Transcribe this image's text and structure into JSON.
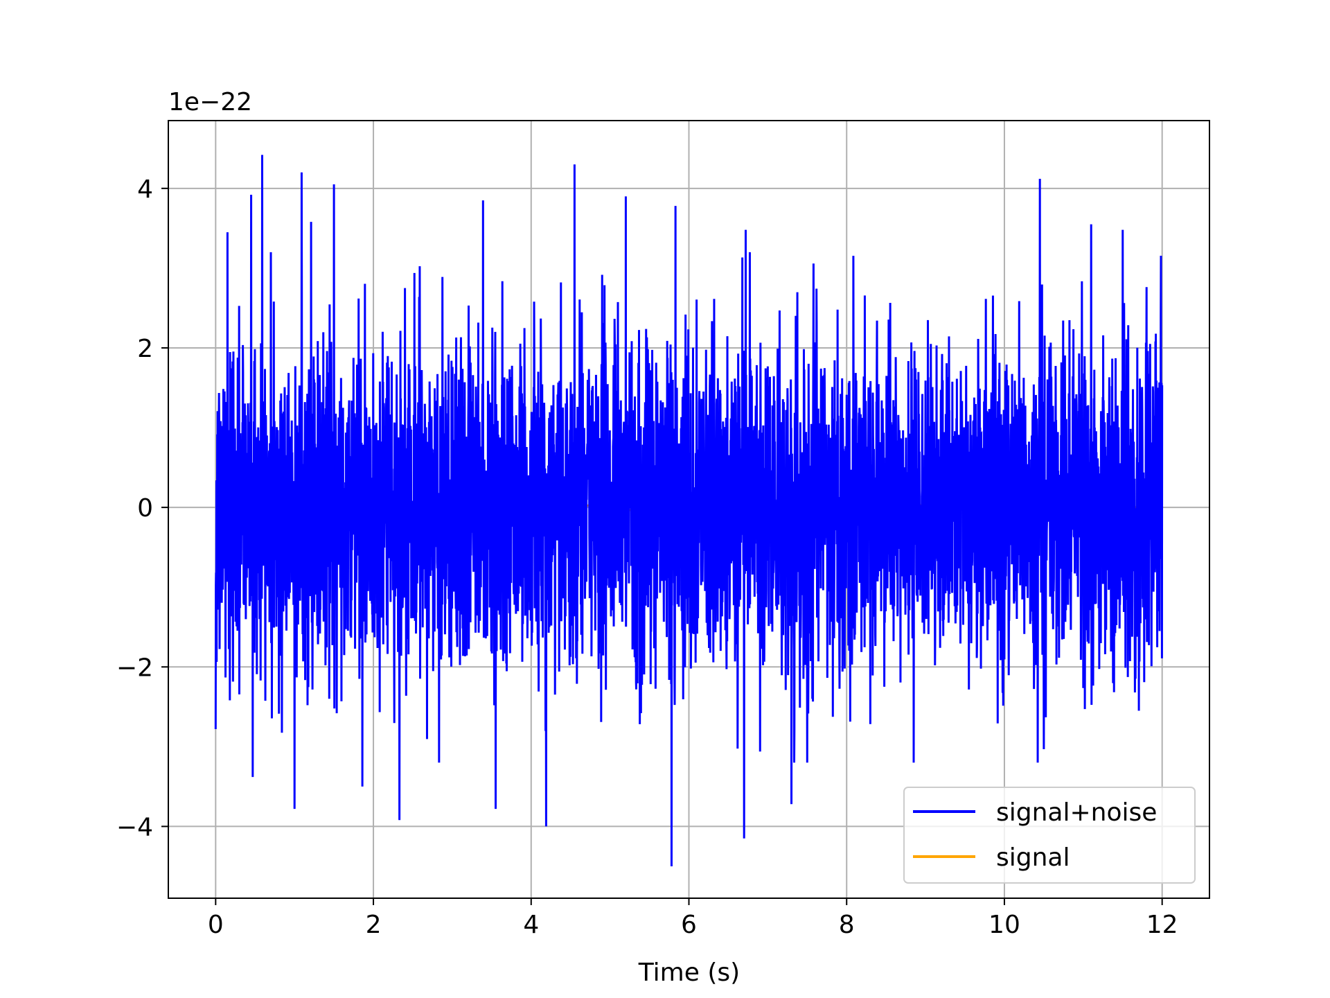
{
  "chart_data": {
    "type": "line",
    "title": "",
    "xlabel": "Time (s)",
    "ylabel": "",
    "offset_text": "1e−22",
    "xlim": [
      -0.6,
      12.6
    ],
    "ylim": [
      -4.9,
      4.85
    ],
    "x_ticks": [
      0,
      2,
      4,
      6,
      8,
      10,
      12
    ],
    "x_tick_labels": [
      "0",
      "2",
      "4",
      "6",
      "8",
      "10",
      "12"
    ],
    "y_ticks": [
      -4,
      -2,
      0,
      2,
      4
    ],
    "y_tick_labels": [
      "−4",
      "−2",
      "0",
      "2",
      "4"
    ],
    "y_scale_note": "values in units of 1e-22",
    "grid": true,
    "legend_position": "lower-right",
    "x_range": [
      0,
      12
    ],
    "series": [
      {
        "name": "signal+noise",
        "color": "#0000ff",
        "description_stats": {
          "std": 1.0,
          "min": -4.5,
          "max": 4.42
        },
        "peaks": [
          [
            0.0,
            -2.78
          ],
          [
            0.15,
            3.45
          ],
          [
            0.45,
            3.92
          ],
          [
            0.47,
            -3.38
          ],
          [
            0.59,
            4.42
          ],
          [
            1.0,
            -3.78
          ],
          [
            1.09,
            4.2
          ],
          [
            1.21,
            3.58
          ],
          [
            1.5,
            4.05
          ],
          [
            1.86,
            -3.5
          ],
          [
            2.33,
            -3.92
          ],
          [
            2.4,
            2.75
          ],
          [
            3.39,
            3.85
          ],
          [
            3.55,
            -3.78
          ],
          [
            4.19,
            -4.0
          ],
          [
            4.55,
            4.3
          ],
          [
            5.2,
            3.9
          ],
          [
            5.78,
            -4.5
          ],
          [
            5.83,
            3.78
          ],
          [
            6.7,
            -4.15
          ],
          [
            6.72,
            3.48
          ],
          [
            7.3,
            -3.72
          ],
          [
            10.45,
            4.12
          ],
          [
            11.1,
            3.55
          ],
          [
            11.5,
            3.48
          ]
        ]
      },
      {
        "name": "signal",
        "color": "#ffa500"
      }
    ]
  }
}
